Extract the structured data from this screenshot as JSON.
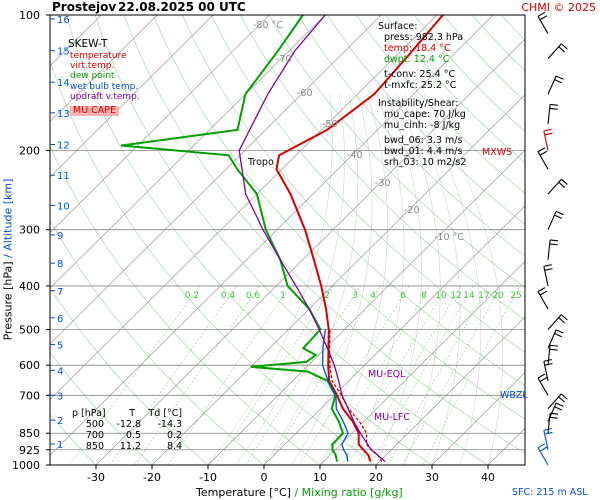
{
  "header": {
    "station": "Prostejov",
    "datetime": "22.08.2025 00 UTC",
    "credit": "CHMI © 2025",
    "credit_color": "#d40000"
  },
  "legend": {
    "title": "SKEW-T",
    "items": [
      {
        "label": "temperature",
        "color": "#d40000"
      },
      {
        "label": "virt.temp.",
        "color": "#d40000"
      },
      {
        "label": "dew point",
        "color": "#00a000"
      },
      {
        "label": "wet bulb temp.",
        "color": "#0050d0"
      },
      {
        "label": "updraft v.temp.",
        "color": "#8000a0"
      }
    ],
    "mu_cape_label": "MU CAPE",
    "mu_cape_bg": "#ffb0b0"
  },
  "surface_panel": {
    "title": "Surface:",
    "press": "press: 982.3 hPa",
    "temp": "temp: 18.4 °C",
    "dwpt": "dwpt: 12.4 °C",
    "tconv": "t-conv: 25.4 °C",
    "tmxfc": "t-mxfc: 25.2 °C",
    "instab_title": "Instability/Shear:",
    "mu_cape": "mu_cape: 70 J/kg",
    "mu_cinh": "mu_cinh: -8 J/kg",
    "bwd_06": "bwd_06: 3.3 m/s",
    "bwd_01": "bwd_01: 4.4 m/s",
    "srh_03": "srh_03: 10 m2/s2"
  },
  "levels_table": {
    "headers": [
      "p [hPa]",
      "T",
      "Td [°C]"
    ],
    "rows": [
      [
        "500",
        "-12.8",
        "-14.3"
      ],
      [
        "700",
        "0.5",
        "0.2"
      ],
      [
        "850",
        "11.2",
        "8.4"
      ]
    ]
  },
  "annotations": {
    "tropo": "Tropo",
    "mu_eql": "MU-EQL",
    "mu_lfc": "MU-LFC",
    "wbzl": "WBZL",
    "mxws": "MXWS",
    "sfc": "SFC: 215 m ASL"
  },
  "axes": {
    "xlabel_temp": "Temperature [°C]",
    "xlabel_sep": "/",
    "xlabel_mix": "Mixing ratio [g/kg]",
    "ylabel_press": "Pressure [hPa]",
    "ylabel_sep": "/",
    "ylabel_alt": "Altitude [km]"
  },
  "chart_data": {
    "type": "line",
    "title": "Prostejov 22.08.2025 00 UTC",
    "xlabel": "Temperature [°C] / Mixing ratio [g/kg]",
    "ylabel": "Pressure [hPa] / Altitude [km]",
    "x_ticks": [
      -30,
      -20,
      -10,
      0,
      10,
      20,
      30,
      40
    ],
    "xlim": [
      -37,
      44
    ],
    "pressure_ticks": [
      100,
      200,
      300,
      400,
      500,
      600,
      700,
      850,
      925,
      1000
    ],
    "altitude_ticks_km": [
      1,
      2,
      3,
      4,
      5,
      6,
      7,
      8,
      9,
      10,
      11,
      12,
      13,
      14,
      15,
      16
    ],
    "isotherm_labels": [
      "-80 °C",
      "-70",
      "-60",
      "-50",
      "-40",
      "-30",
      "-20",
      "-10 °C"
    ],
    "mixing_ratio_labels": [
      "0.2",
      "0.4",
      "0.6",
      "1",
      "2",
      "3",
      "4",
      "6",
      "8",
      "10",
      "12",
      "14",
      "17",
      "20",
      "25"
    ],
    "grid": true,
    "legend_position": "top-left",
    "series": [
      {
        "name": "temperature",
        "color": "#d40000",
        "points": [
          [
            982,
            18.4
          ],
          [
            950,
            16.8
          ],
          [
            925,
            15.0
          ],
          [
            900,
            13.2
          ],
          [
            850,
            11.2
          ],
          [
            800,
            8.0
          ],
          [
            750,
            4.0
          ],
          [
            700,
            0.5
          ],
          [
            650,
            -3.5
          ],
          [
            600,
            -6.5
          ],
          [
            550,
            -9.5
          ],
          [
            500,
            -12.8
          ],
          [
            450,
            -17
          ],
          [
            400,
            -22
          ],
          [
            350,
            -28
          ],
          [
            300,
            -35
          ],
          [
            250,
            -44
          ],
          [
            220,
            -51
          ],
          [
            205,
            -53
          ],
          [
            180,
            -49
          ],
          [
            150,
            -47
          ],
          [
            120,
            -48
          ],
          [
            100,
            -49
          ]
        ]
      },
      {
        "name": "virt.temp.",
        "color": "#d40000",
        "points": [
          [
            982,
            20.4
          ],
          [
            950,
            18.5
          ],
          [
            925,
            16.5
          ],
          [
            900,
            14.6
          ],
          [
            850,
            12.6
          ],
          [
            800,
            9.2
          ],
          [
            750,
            5.0
          ],
          [
            700,
            1.3
          ],
          [
            650,
            -3.0
          ],
          [
            600,
            -6.2
          ],
          [
            550,
            -9.3
          ],
          [
            500,
            -12.6
          ]
        ]
      },
      {
        "name": "dew point",
        "color": "#00a000",
        "points": [
          [
            982,
            12.4
          ],
          [
            950,
            11.0
          ],
          [
            925,
            9.5
          ],
          [
            900,
            8.5
          ],
          [
            850,
            8.4
          ],
          [
            800,
            5.5
          ],
          [
            750,
            2.0
          ],
          [
            700,
            0.2
          ],
          [
            650,
            -3.8
          ],
          [
            620,
            -9
          ],
          [
            605,
            -20
          ],
          [
            590,
            -11
          ],
          [
            570,
            -10.5
          ],
          [
            550,
            -14
          ],
          [
            500,
            -14.3
          ],
          [
            450,
            -20
          ],
          [
            400,
            -28
          ],
          [
            350,
            -34
          ],
          [
            300,
            -42
          ],
          [
            250,
            -50
          ],
          [
            220,
            -58
          ],
          [
            205,
            -62
          ],
          [
            195,
            -83
          ],
          [
            180,
            -65
          ],
          [
            150,
            -70
          ],
          [
            120,
            -72
          ],
          [
            100,
            -74
          ]
        ]
      },
      {
        "name": "wet bulb temp.",
        "color": "#0050d0",
        "points": [
          [
            982,
            14.3
          ],
          [
            950,
            13.0
          ],
          [
            925,
            11.5
          ],
          [
            900,
            10.2
          ],
          [
            850,
            9.3
          ],
          [
            800,
            6.3
          ],
          [
            750,
            2.8
          ],
          [
            700,
            0.3
          ],
          [
            650,
            -3.7
          ],
          [
            600,
            -7.5
          ],
          [
            550,
            -10.5
          ],
          [
            500,
            -13.4
          ]
        ]
      },
      {
        "name": "updraft v.temp.",
        "color": "#8000a0",
        "points": [
          [
            982,
            21.0
          ],
          [
            925,
            16.4
          ],
          [
            850,
            11.5
          ],
          [
            800,
            8.2
          ],
          [
            760,
            5.6
          ],
          [
            700,
            1.4
          ],
          [
            650,
            -1.8
          ],
          [
            600,
            -5.4
          ],
          [
            550,
            -9.7
          ],
          [
            500,
            -14.5
          ],
          [
            450,
            -20
          ],
          [
            400,
            -26.5
          ],
          [
            350,
            -34
          ],
          [
            300,
            -42.5
          ],
          [
            250,
            -52
          ],
          [
            200,
            -61
          ],
          [
            150,
            -66
          ],
          [
            120,
            -69
          ],
          [
            100,
            -70
          ]
        ]
      }
    ]
  }
}
